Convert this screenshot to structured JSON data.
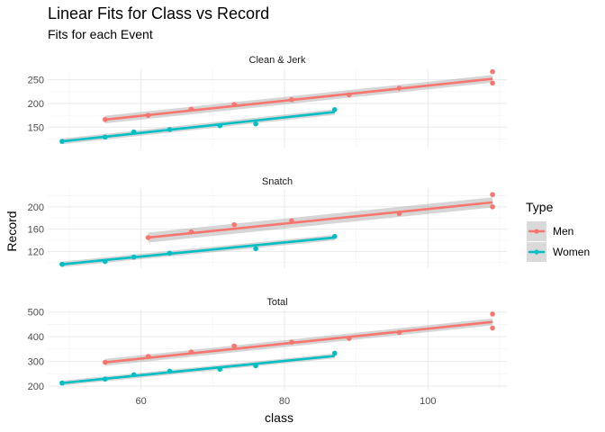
{
  "chart_data": {
    "type": "scatter",
    "title": "Linear Fits for Class vs Record",
    "subtitle": "Fits for each Event",
    "xlabel": "class",
    "ylabel": "Record",
    "xlim": [
      47,
      111
    ],
    "x_ticks": [
      60,
      80,
      100
    ],
    "grid": true,
    "legend": {
      "title": "Type",
      "placement": "right",
      "entries": [
        {
          "name": "Men",
          "color": "#F8766D"
        },
        {
          "name": "Women",
          "color": "#00BFC4"
        }
      ]
    },
    "panels": [
      {
        "title": "Clean & Jerk",
        "ylim": [
          105,
          272
        ],
        "y_ticks": [
          150,
          200,
          250
        ],
        "series": [
          {
            "name": "Men",
            "color": "#F8766D",
            "x": [
              55,
              61,
              67,
              73,
              81,
              89,
              96,
              109,
              109
            ],
            "y": [
              166,
              175,
              188,
              198,
              208,
              218,
              232,
              267,
              243
            ],
            "fit": {
              "x": [
                55,
                109
              ],
              "y": [
                166,
                252
              ],
              "se": 8
            }
          },
          {
            "name": "Women",
            "color": "#00BFC4",
            "x": [
              49,
              55,
              59,
              64,
              71,
              76,
              87
            ],
            "y": [
              120,
              129,
              140,
              145,
              153,
              157,
              187
            ],
            "fit": {
              "x": [
                49,
                87
              ],
              "y": [
                120,
                182
              ],
              "se": 6
            }
          }
        ]
      },
      {
        "title": "Snatch",
        "ylim": [
          90,
          232
        ],
        "y_ticks": [
          120,
          160,
          200
        ],
        "series": [
          {
            "name": "Men",
            "color": "#F8766D",
            "x": [
              61,
              67,
              73,
              81,
              96,
              109,
              109
            ],
            "y": [
              145,
              155,
              168,
              175,
              188,
              222,
              200
            ],
            "fit": {
              "x": [
                61,
                109
              ],
              "y": [
                145,
                208
              ],
              "se": 9
            }
          },
          {
            "name": "Women",
            "color": "#00BFC4",
            "x": [
              49,
              55,
              59,
              64,
              76,
              87
            ],
            "y": [
              97,
              102,
              110,
              117,
              125,
              147
            ],
            "fit": {
              "x": [
                49,
                87
              ],
              "y": [
                97,
                145
              ],
              "se": 5
            }
          }
        ]
      },
      {
        "title": "Total",
        "ylim": [
          185,
          510
        ],
        "y_ticks": [
          200,
          300,
          400,
          500
        ],
        "series": [
          {
            "name": "Men",
            "color": "#F8766D",
            "x": [
              55,
              61,
              67,
              73,
              81,
              89,
              96,
              109,
              109
            ],
            "y": [
              296,
              320,
              338,
              362,
              378,
              393,
              417,
              492,
              435
            ],
            "fit": {
              "x": [
                55,
                109
              ],
              "y": [
                296,
                460
              ],
              "se": 14
            }
          },
          {
            "name": "Women",
            "color": "#00BFC4",
            "x": [
              49,
              55,
              59,
              64,
              71,
              76,
              87
            ],
            "y": [
              212,
              228,
              246,
              260,
              268,
              282,
              333
            ],
            "fit": {
              "x": [
                49,
                87
              ],
              "y": [
                212,
                322
              ],
              "se": 10
            }
          }
        ]
      }
    ]
  }
}
